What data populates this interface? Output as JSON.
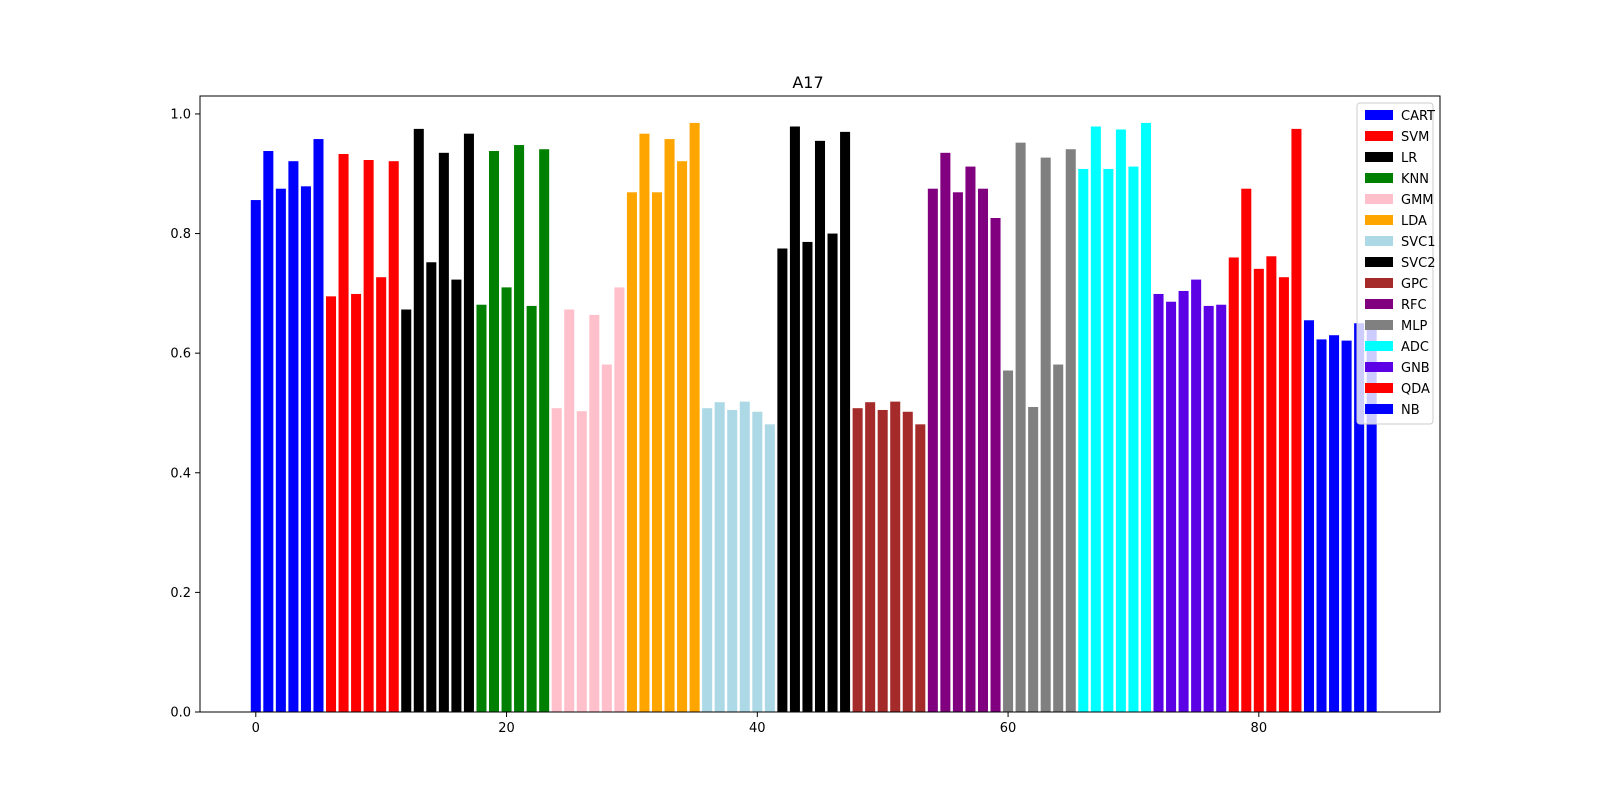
{
  "chart_data": {
    "type": "bar",
    "title": "A17",
    "xlabel": "",
    "ylabel": "",
    "xlim": [
      -4.45,
      94.45
    ],
    "ylim": [
      0,
      1.03
    ],
    "xticks": [
      0,
      20,
      40,
      60,
      80
    ],
    "yticks": [
      0.0,
      0.2,
      0.4,
      0.6,
      0.8,
      1.0
    ],
    "grid": false,
    "legend_position": "top-right",
    "series": [
      {
        "name": "CART",
        "color": "#0000ff",
        "x": [
          0,
          1,
          2,
          3,
          4,
          5
        ],
        "values": [
          0.856,
          0.938,
          0.875,
          0.921,
          0.879,
          0.958
        ]
      },
      {
        "name": "SVM",
        "color": "#ff0000",
        "x": [
          6,
          7,
          8,
          9,
          10,
          11
        ],
        "values": [
          0.695,
          0.933,
          0.699,
          0.923,
          0.727,
          0.921
        ]
      },
      {
        "name": "LR",
        "color": "#000000",
        "x": [
          12,
          13,
          14,
          15,
          16,
          17
        ],
        "values": [
          0.673,
          0.975,
          0.752,
          0.935,
          0.723,
          0.967
        ]
      },
      {
        "name": "KNN",
        "color": "#008000",
        "x": [
          18,
          19,
          20,
          21,
          22,
          23
        ],
        "values": [
          0.681,
          0.938,
          0.71,
          0.948,
          0.679,
          0.941
        ]
      },
      {
        "name": "GMM",
        "color": "#ffc0cb",
        "x": [
          24,
          25,
          26,
          27,
          28,
          29
        ],
        "values": [
          0.508,
          0.673,
          0.503,
          0.664,
          0.581,
          0.71
        ]
      },
      {
        "name": "LDA",
        "color": "#ffa500",
        "x": [
          30,
          31,
          32,
          33,
          34,
          35
        ],
        "values": [
          0.869,
          0.967,
          0.869,
          0.958,
          0.921,
          0.985
        ]
      },
      {
        "name": "SVC1",
        "color": "#add8e6",
        "x": [
          36,
          37,
          38,
          39,
          40,
          41
        ],
        "values": [
          0.508,
          0.518,
          0.505,
          0.519,
          0.502,
          0.481
        ]
      },
      {
        "name": "SVC2",
        "color": "#000000",
        "x": [
          42,
          43,
          44,
          45,
          46,
          47
        ],
        "values": [
          0.775,
          0.979,
          0.786,
          0.955,
          0.8,
          0.97
        ]
      },
      {
        "name": "GPC",
        "color": "#a52a2a",
        "x": [
          48,
          49,
          50,
          51,
          52,
          53
        ],
        "values": [
          0.508,
          0.518,
          0.505,
          0.519,
          0.502,
          0.481
        ]
      },
      {
        "name": "RFC",
        "color": "#800080",
        "x": [
          54,
          55,
          56,
          57,
          58,
          59
        ],
        "values": [
          0.875,
          0.935,
          0.869,
          0.912,
          0.875,
          0.826
        ]
      },
      {
        "name": "MLP",
        "color": "#808080",
        "x": [
          60,
          61,
          62,
          63,
          64,
          65
        ],
        "values": [
          0.571,
          0.952,
          0.51,
          0.927,
          0.581,
          0.941
        ]
      },
      {
        "name": "ADC",
        "color": "#00ffff",
        "x": [
          66,
          67,
          68,
          69,
          70,
          71
        ],
        "values": [
          0.908,
          0.979,
          0.908,
          0.974,
          0.912,
          0.985
        ]
      },
      {
        "name": "GNB",
        "color": "#5c00e6",
        "x": [
          72,
          73,
          74,
          75,
          76,
          77
        ],
        "values": [
          0.699,
          0.686,
          0.704,
          0.723,
          0.679,
          0.681
        ]
      },
      {
        "name": "QDA",
        "color": "#ff0000",
        "x": [
          78,
          79,
          80,
          81,
          82,
          83
        ],
        "values": [
          0.76,
          0.875,
          0.741,
          0.762,
          0.727,
          0.975
        ]
      },
      {
        "name": "NB",
        "color": "#0000ff",
        "x": [
          84,
          85,
          86,
          87,
          88,
          89
        ],
        "values": [
          0.655,
          0.623,
          0.63,
          0.621,
          0.65,
          0.652
        ]
      }
    ]
  }
}
